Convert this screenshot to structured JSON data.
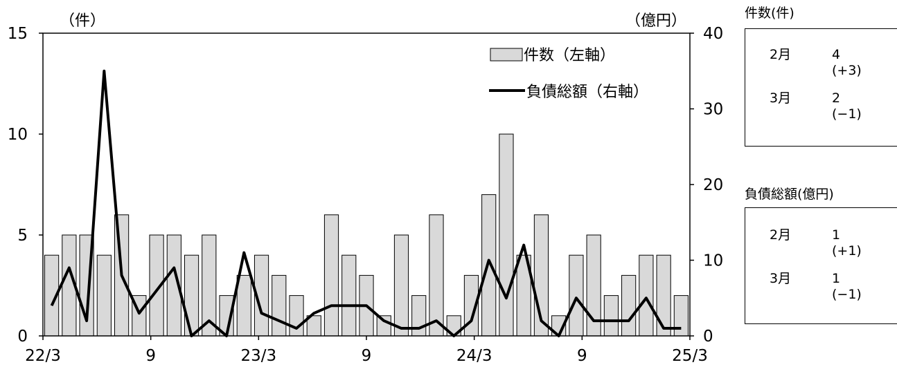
{
  "chart_data": {
    "type": "bar",
    "left_unit": "（件）",
    "right_unit": "（億円）",
    "left_ylim": [
      0,
      15
    ],
    "right_ylim": [
      0,
      40
    ],
    "left_ticks": [
      "0",
      "5",
      "10",
      "15"
    ],
    "right_ticks": [
      "0",
      "10",
      "20",
      "30",
      "40"
    ],
    "x_tick_labels": [
      "22/3",
      "9",
      "23/3",
      "9",
      "24/3",
      "9",
      "25/3"
    ],
    "series": [
      {
        "name": "件数（左軸）",
        "type": "bar",
        "axis": "left",
        "color": "#d9d9d9",
        "values": [
          4,
          5,
          5,
          4,
          6,
          2,
          5,
          5,
          4,
          5,
          2,
          3,
          4,
          3,
          2,
          1,
          6,
          4,
          3,
          1,
          5,
          2,
          6,
          1,
          3,
          7,
          10,
          4,
          6,
          1,
          4,
          5,
          2,
          3,
          4,
          4,
          2
        ]
      },
      {
        "name": "負債総額（右軸）",
        "type": "line",
        "axis": "right",
        "color": "#000000",
        "values": [
          4,
          9,
          2,
          35,
          8,
          3,
          6,
          9,
          0,
          2,
          0,
          11,
          3,
          2,
          1,
          3,
          4,
          4,
          4,
          2,
          1,
          1,
          2,
          0,
          2,
          10,
          5,
          12,
          2,
          0,
          5,
          2,
          2,
          2,
          5,
          1,
          1
        ]
      }
    ]
  },
  "side_panels": [
    {
      "title": "件数(件)",
      "rows": [
        {
          "month": "2月",
          "value": "4",
          "diff": "(+3)"
        },
        {
          "month": "3月",
          "value": "2",
          "diff": "(−1)"
        }
      ]
    },
    {
      "title": "負債総額(億円)",
      "rows": [
        {
          "month": "2月",
          "value": "1",
          "diff": "(+1)"
        },
        {
          "month": "3月",
          "value": "1",
          "diff": "(−1)"
        }
      ]
    }
  ]
}
